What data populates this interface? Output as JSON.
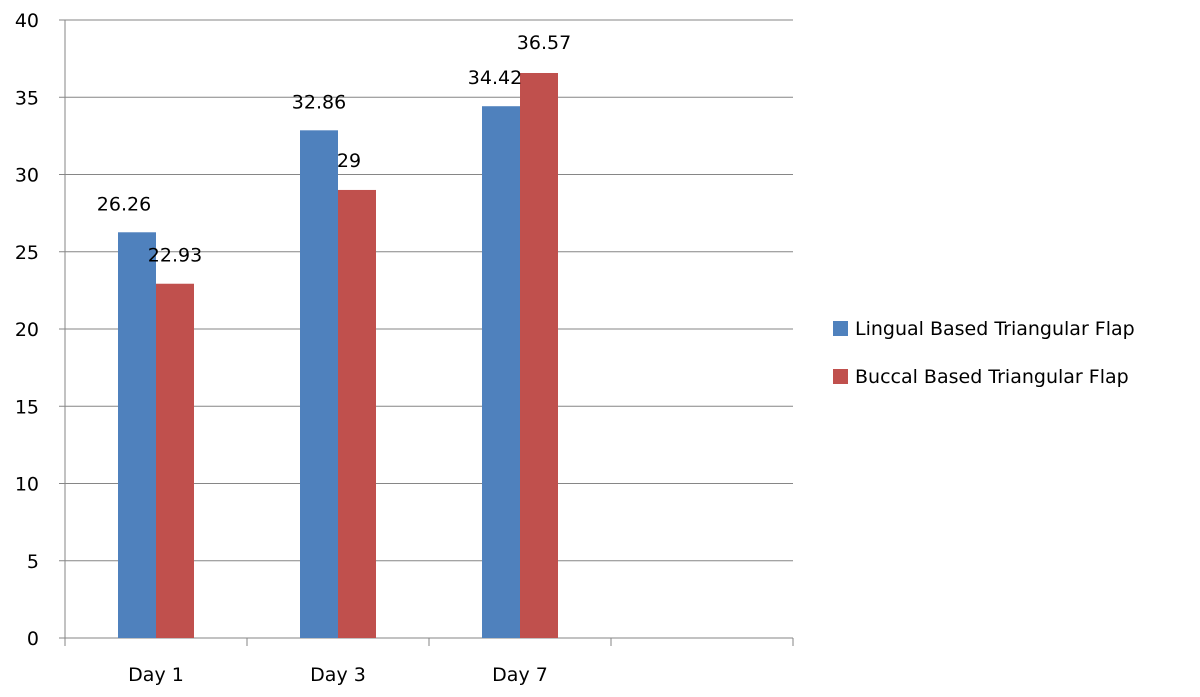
{
  "chart_data": {
    "type": "bar",
    "title": "",
    "xlabel": "",
    "ylabel": "",
    "categories": [
      "Day 1",
      "Day 3",
      "Day 7",
      ""
    ],
    "series": [
      {
        "name": "Lingual Based Triangular Flap",
        "color": "#4F81BD",
        "values": [
          26.26,
          32.86,
          34.42,
          null
        ],
        "labels": [
          "26.26",
          "32.86",
          "34.42",
          null
        ]
      },
      {
        "name": "Buccal Based Triangular Flap",
        "color": "#C0504D",
        "values": [
          22.93,
          29,
          36.57,
          null
        ],
        "labels": [
          "22.93",
          "29",
          "36.57",
          null
        ]
      }
    ],
    "ylim": [
      0,
      40
    ],
    "yticks": [
      "0",
      "5",
      "10",
      "15",
      "20",
      "25",
      "30",
      "35",
      "40"
    ],
    "grid": true,
    "legend_position": "right"
  }
}
